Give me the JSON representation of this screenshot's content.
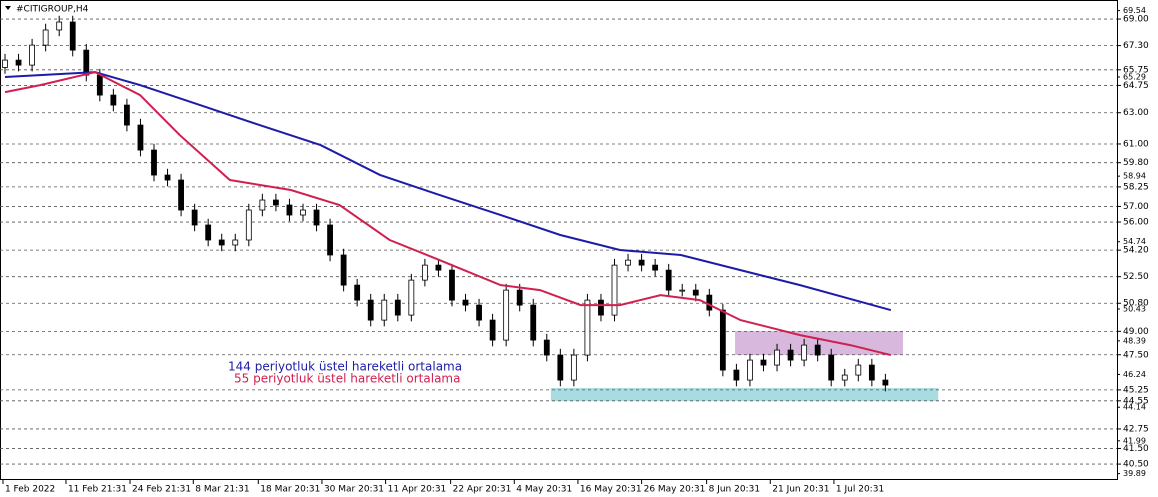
{
  "chart_data": {
    "type": "candlestick",
    "title": "#CITIGROUP,H4",
    "open": [
      65.9,
      66.37,
      66.05,
      67.33,
      68.3,
      68.81,
      67.01,
      65.41,
      64.13,
      63.49,
      62.21,
      60.61,
      59.01,
      58.69,
      56.77,
      55.81,
      54.85,
      54.53,
      54.85,
      56.77,
      57.41,
      57.09,
      56.45,
      56.77,
      55.81,
      53.89,
      51.96,
      51.0,
      49.72,
      51.0,
      50.04,
      52.28,
      53.24,
      52.92,
      51.0,
      50.68,
      49.72,
      48.44,
      51.64,
      50.68,
      48.44,
      47.48,
      45.88,
      47.48,
      51.0,
      50.04,
      53.24,
      53.56,
      53.24,
      52.92,
      51.64,
      51.64,
      51.32,
      50.36,
      46.52,
      45.88,
      47.16,
      46.84,
      47.8,
      47.16,
      48.12,
      47.48,
      45.88,
      46.2,
      46.84,
      45.88
    ],
    "high": [
      66.77,
      66.77,
      67.73,
      68.7,
      69.21,
      69.21,
      67.41,
      65.81,
      64.53,
      63.89,
      62.61,
      61.01,
      59.41,
      59.09,
      57.17,
      56.21,
      55.25,
      55.25,
      57.17,
      57.81,
      57.81,
      57.49,
      57.17,
      57.17,
      56.21,
      54.29,
      52.36,
      51.4,
      51.4,
      51.4,
      52.68,
      53.64,
      53.64,
      53.32,
      51.4,
      51.08,
      50.12,
      52.04,
      52.04,
      51.08,
      48.84,
      47.88,
      47.88,
      51.4,
      51.4,
      53.64,
      53.96,
      53.96,
      53.64,
      53.32,
      52.04,
      52.04,
      51.72,
      50.76,
      46.92,
      47.56,
      47.56,
      48.2,
      48.2,
      48.52,
      48.52,
      47.88,
      46.6,
      47.24,
      47.24,
      46.28
    ],
    "low": [
      65.5,
      65.65,
      65.65,
      66.93,
      67.9,
      66.61,
      65.01,
      63.73,
      63.09,
      61.81,
      60.21,
      58.61,
      58.29,
      56.37,
      55.41,
      54.45,
      54.13,
      54.13,
      54.45,
      56.37,
      56.69,
      56.05,
      56.05,
      55.41,
      53.49,
      51.56,
      50.6,
      49.32,
      49.32,
      49.64,
      49.64,
      51.88,
      52.52,
      50.6,
      50.28,
      49.32,
      48.04,
      48.04,
      50.28,
      48.04,
      47.08,
      45.48,
      45.48,
      47.08,
      49.64,
      49.64,
      52.84,
      52.84,
      52.52,
      51.24,
      51.24,
      50.92,
      49.96,
      46.12,
      45.48,
      45.48,
      46.44,
      46.44,
      46.76,
      46.76,
      47.08,
      45.48,
      45.48,
      45.8,
      45.48,
      45.16
    ],
    "close": [
      66.37,
      66.05,
      67.33,
      68.3,
      68.81,
      67.01,
      65.41,
      64.13,
      63.49,
      62.21,
      60.61,
      59.01,
      58.69,
      56.77,
      55.81,
      54.85,
      54.53,
      54.85,
      56.77,
      57.41,
      57.09,
      56.45,
      56.77,
      55.81,
      53.89,
      51.96,
      51.0,
      49.72,
      51.0,
      50.04,
      52.28,
      53.24,
      52.92,
      51.0,
      50.68,
      49.72,
      48.44,
      51.64,
      50.68,
      48.44,
      47.48,
      45.88,
      47.48,
      51.0,
      50.04,
      53.24,
      53.56,
      53.24,
      52.92,
      51.64,
      51.64,
      51.32,
      50.36,
      46.52,
      45.88,
      47.16,
      46.84,
      47.8,
      47.16,
      48.12,
      47.48,
      45.88,
      46.2,
      46.84,
      45.88,
      45.56
    ],
    "series": [
      {
        "name": "144 periyotluk üstel hareketli ortalama",
        "color": "#1c1ca8",
        "x": [
          0,
          6.65,
          9.97,
          14.4,
          18.8,
          23.3,
          27.7,
          32.1,
          36.6,
          41.0,
          45.4,
          49.9,
          54.3,
          58.7,
          65.4
        ],
        "values": [
          65.29,
          65.6,
          64.77,
          63.49,
          62.21,
          60.93,
          59.01,
          57.73,
          56.45,
          55.17,
          54.21,
          53.89,
          52.92,
          51.96,
          50.36
        ]
      },
      {
        "name": "55 periyotluk üstel hareketli ortalama",
        "color": "#d02050",
        "x": [
          0,
          2.6,
          6.65,
          9.97,
          12.9,
          16.6,
          21.1,
          24.7,
          28.4,
          32.1,
          36.6,
          39.5,
          42.5,
          45.4,
          48.4,
          51.3,
          54.3,
          58.7,
          62.4,
          65.4
        ],
        "values": [
          64.32,
          64.77,
          65.6,
          64.13,
          61.57,
          58.69,
          58.05,
          57.09,
          54.85,
          53.56,
          51.96,
          51.64,
          50.68,
          50.68,
          51.32,
          51.0,
          49.72,
          48.76,
          48.12,
          47.48
        ]
      }
    ],
    "zones": [
      {
        "color": "#d8b8dc",
        "x": [
          53.9,
          66.3
        ],
        "y": [
          47.48,
          49.02
        ]
      },
      {
        "color": "#a8dce0",
        "x": [
          40.3,
          68.9
        ],
        "y": [
          44.53,
          45.37
        ]
      }
    ],
    "xlim": [
      -0.37,
      82.1
    ],
    "ylim": [
      39.48,
      70.22
    ],
    "xticks": [
      {
        "value": -0.15,
        "label": "1 Feb 2022"
      },
      {
        "value": 4.5,
        "label": "11 Feb 21:31"
      },
      {
        "value": 9.23,
        "label": "24 Feb 21:31"
      },
      {
        "value": 13.9,
        "label": "8 Mar 21:31"
      },
      {
        "value": 18.7,
        "label": "18 Mar 20:31"
      },
      {
        "value": 23.4,
        "label": "30 Mar 20:31"
      },
      {
        "value": 28.1,
        "label": "11 Apr 20:31"
      },
      {
        "value": 32.9,
        "label": "22 Apr 20:31"
      },
      {
        "value": 37.6,
        "label": "4 May 20:31"
      },
      {
        "value": 42.3,
        "label": "16 May 20:31"
      },
      {
        "value": 47.0,
        "label": "26 May 20:31"
      },
      {
        "value": 51.8,
        "label": "8 Jun 20:31"
      },
      {
        "value": 56.5,
        "label": "21 Jun 20:31"
      },
      {
        "value": 61.2,
        "label": "1 Jul 20:31"
      }
    ],
    "levels": [
      {
        "value": 69,
        "label": "69.00"
      },
      {
        "value": 67.3,
        "label": "67.30"
      },
      {
        "value": 65.75,
        "label": "65.75"
      },
      {
        "value": 64.75,
        "label": "64.75"
      },
      {
        "value": 63,
        "label": "63.00"
      },
      {
        "value": 61,
        "label": "61.00"
      },
      {
        "value": 59.8,
        "label": "59.80"
      },
      {
        "value": 58.25,
        "label": "58.25"
      },
      {
        "value": 57,
        "label": "57.00"
      },
      {
        "value": 56,
        "label": "56.00"
      },
      {
        "value": 54.2,
        "label": "54.20"
      },
      {
        "value": 52.5,
        "label": "52.50"
      },
      {
        "value": 50.8,
        "label": "50.80"
      },
      {
        "value": 49,
        "label": "49.00"
      },
      {
        "value": 47.5,
        "label": "47.50"
      },
      {
        "value": 45.25,
        "label": "45.25"
      },
      {
        "value": 44.55,
        "label": "44.55"
      },
      {
        "value": 42.75,
        "label": "42.75"
      },
      {
        "value": 41.5,
        "label": "41.50"
      },
      {
        "value": 40.5,
        "label": "40.50"
      }
    ],
    "yticks": [
      69.54,
      65.29,
      58.94,
      54.74,
      50.43,
      48.39,
      46.24,
      44.14,
      41.99,
      39.89
    ]
  }
}
